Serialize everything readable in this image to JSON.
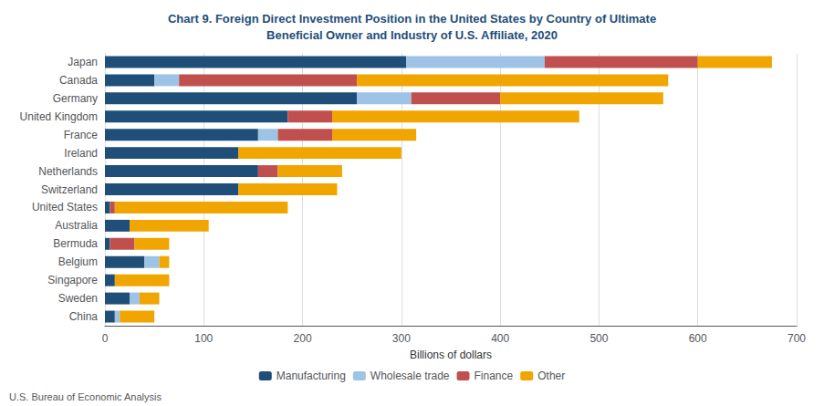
{
  "chart_data": {
    "type": "bar",
    "orientation": "horizontal",
    "stacked": true,
    "title": "Chart 9. Foreign Direct Investment Position in the United States by Country of Ultimate\nBeneficial Owner and Industry of U.S. Affiliate, 2020",
    "title_color": "#1f4e79",
    "xlabel": "Billions of dollars",
    "categories": [
      "Japan",
      "Canada",
      "Germany",
      "United Kingdom",
      "France",
      "Ireland",
      "Netherlands",
      "Switzerland",
      "United States",
      "Australia",
      "Bermuda",
      "Belgium",
      "Singapore",
      "Sweden",
      "China"
    ],
    "series": [
      {
        "name": "Manufacturing",
        "color": "#1f4e79",
        "values": [
          305,
          50,
          255,
          185,
          155,
          135,
          155,
          135,
          5,
          25,
          5,
          40,
          10,
          25,
          10
        ]
      },
      {
        "name": "Wholesale trade",
        "color": "#9dc3e6",
        "values": [
          140,
          25,
          55,
          0,
          20,
          0,
          0,
          0,
          0,
          0,
          0,
          15,
          0,
          10,
          5
        ]
      },
      {
        "name": "Finance",
        "color": "#c0504d",
        "values": [
          155,
          180,
          90,
          45,
          55,
          0,
          20,
          0,
          5,
          0,
          25,
          0,
          0,
          0,
          0
        ]
      },
      {
        "name": "Other",
        "color": "#f0a500",
        "values": [
          75,
          315,
          165,
          250,
          85,
          165,
          65,
          100,
          175,
          80,
          35,
          10,
          55,
          20,
          35
        ]
      }
    ],
    "xlim": [
      0,
      700
    ],
    "xticks": [
      0,
      100,
      200,
      300,
      400,
      500,
      600,
      700
    ],
    "grid": true,
    "legend": "bottom",
    "annotations": [
      "U.S. Bureau of Economic Analysis"
    ]
  }
}
